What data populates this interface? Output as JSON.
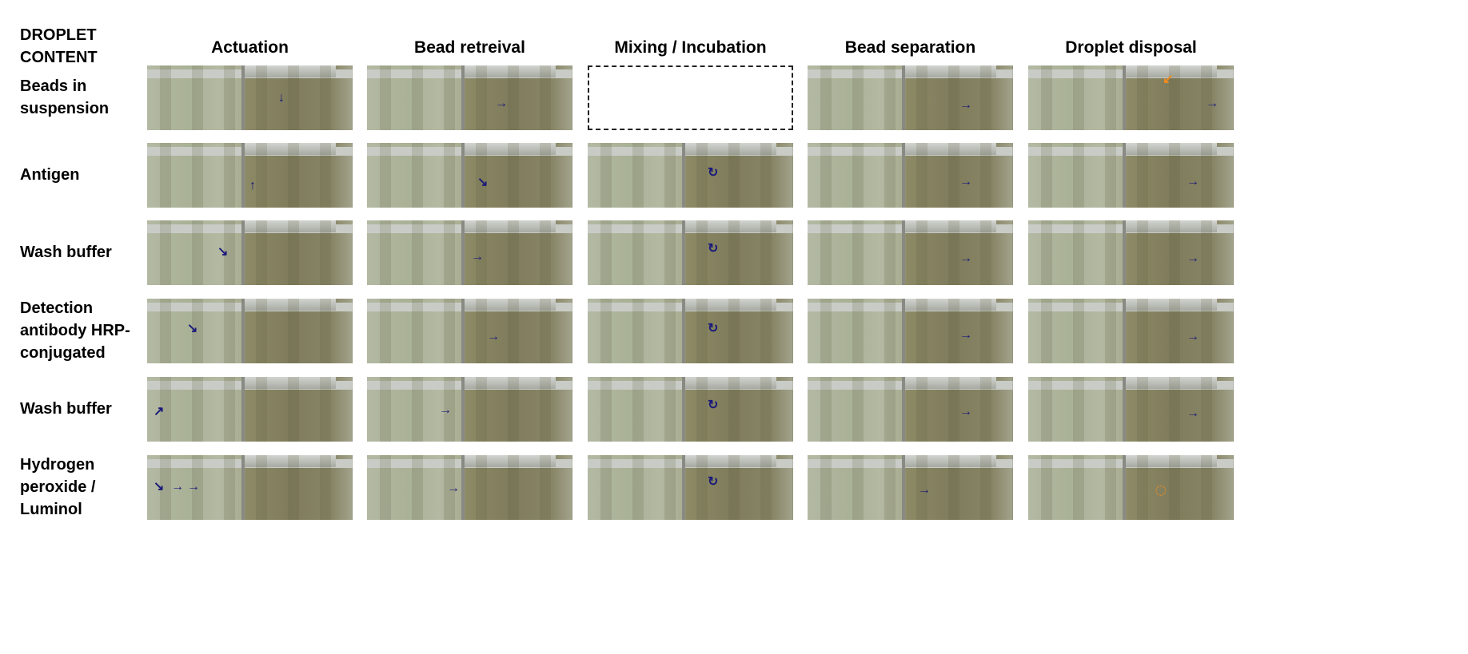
{
  "corner_label": [
    "DROPLET",
    "CONTENT"
  ],
  "columns": [
    "Actuation",
    "Bead retreival",
    "Mixing / Incubation",
    "Bead separation",
    "Droplet disposal"
  ],
  "rows": [
    {
      "label": [
        "Beads in",
        "suspension"
      ]
    },
    {
      "label": [
        "Antigen"
      ]
    },
    {
      "label": [
        "Wash buffer"
      ]
    },
    {
      "label": [
        "Detection",
        "antibody HRP-",
        "conjugated"
      ]
    },
    {
      "label": [
        "Wash buffer"
      ]
    },
    {
      "label": [
        "Hydrogen",
        "peroxide /",
        "Luminol"
      ]
    }
  ],
  "empty_cells": [
    [
      0,
      2
    ]
  ],
  "colors": {
    "arrow": "#1a1a7a",
    "highlight": "#f08c1e"
  }
}
